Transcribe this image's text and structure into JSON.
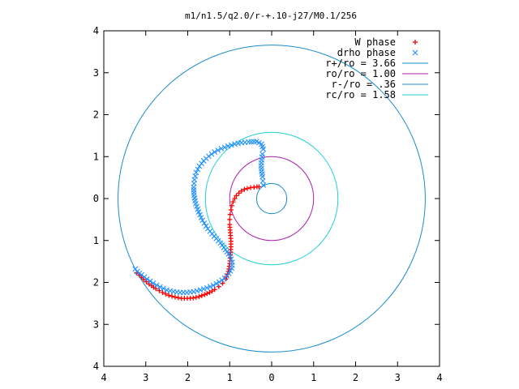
{
  "chart_data": {
    "type": "scatter",
    "title": "m1/n1.5/q2.0/r-+.10-j27/M0.1/256",
    "xlim": [
      -4,
      4
    ],
    "ylim": [
      -4,
      4
    ],
    "x_ticks": [
      "4",
      "3",
      "2",
      "1",
      "0",
      "1",
      "2",
      "3",
      "4"
    ],
    "y_ticks": [
      "4",
      "3",
      "2",
      "1",
      "0",
      "1",
      "2",
      "3",
      "4"
    ],
    "legend_position": "top-right",
    "colors": {
      "w_phase": "#ff0000",
      "drho_phase": "#1e90ff",
      "r_plus": "#1a8ccc",
      "r_o": "#b020b0",
      "r_minus": "#1a8ccc",
      "r_c": "#20d0d8"
    },
    "series": [
      {
        "key": "w_phase",
        "name": "W phase",
        "marker": "+",
        "points": [
          [
            -0.3,
            0.28
          ],
          [
            -0.35,
            0.28
          ],
          [
            -0.42,
            0.27
          ],
          [
            -0.5,
            0.26
          ],
          [
            -0.58,
            0.24
          ],
          [
            -0.65,
            0.22
          ],
          [
            -0.72,
            0.18
          ],
          [
            -0.78,
            0.13
          ],
          [
            -0.84,
            0.07
          ],
          [
            -0.88,
            0.0
          ],
          [
            -0.92,
            -0.08
          ],
          [
            -0.95,
            -0.17
          ],
          [
            -0.97,
            -0.27
          ],
          [
            -0.99,
            -0.38
          ],
          [
            -1.0,
            -0.5
          ],
          [
            -1.0,
            -0.62
          ],
          [
            -0.99,
            -0.75
          ],
          [
            -0.98,
            -0.88
          ],
          [
            -0.97,
            -1.02
          ],
          [
            -0.97,
            -1.15
          ],
          [
            -0.98,
            -1.28
          ],
          [
            -0.99,
            -1.42
          ],
          [
            -1.0,
            -1.55
          ],
          [
            -1.02,
            -1.68
          ],
          [
            -1.05,
            -1.8
          ],
          [
            -1.1,
            -1.92
          ],
          [
            -1.17,
            -2.02
          ],
          [
            -1.26,
            -2.1
          ],
          [
            -1.36,
            -2.17
          ],
          [
            -1.48,
            -2.24
          ],
          [
            -1.6,
            -2.29
          ],
          [
            -1.73,
            -2.34
          ],
          [
            -1.87,
            -2.37
          ],
          [
            -2.01,
            -2.38
          ],
          [
            -2.15,
            -2.38
          ],
          [
            -2.3,
            -2.35
          ],
          [
            -2.45,
            -2.31
          ],
          [
            -2.6,
            -2.24
          ],
          [
            -2.76,
            -2.15
          ],
          [
            -2.92,
            -2.04
          ],
          [
            -3.05,
            -1.93
          ],
          [
            -3.15,
            -1.83
          ],
          [
            -3.22,
            -1.77
          ]
        ]
      },
      {
        "key": "drho_phase",
        "name": "drho phase",
        "marker": "x",
        "points": [
          [
            -0.2,
            0.32
          ],
          [
            -0.21,
            0.42
          ],
          [
            -0.22,
            0.52
          ],
          [
            -0.24,
            0.65
          ],
          [
            -0.25,
            0.78
          ],
          [
            -0.24,
            0.92
          ],
          [
            -0.22,
            1.06
          ],
          [
            -0.2,
            1.18
          ],
          [
            -0.24,
            1.3
          ],
          [
            -0.36,
            1.36
          ],
          [
            -0.55,
            1.35
          ],
          [
            -0.72,
            1.33
          ],
          [
            -0.88,
            1.3
          ],
          [
            -1.04,
            1.25
          ],
          [
            -1.2,
            1.19
          ],
          [
            -1.36,
            1.11
          ],
          [
            -1.5,
            1.01
          ],
          [
            -1.62,
            0.9
          ],
          [
            -1.72,
            0.77
          ],
          [
            -1.8,
            0.62
          ],
          [
            -1.84,
            0.45
          ],
          [
            -1.86,
            0.27
          ],
          [
            -1.85,
            0.08
          ],
          [
            -1.81,
            -0.12
          ],
          [
            -1.74,
            -0.32
          ],
          [
            -1.65,
            -0.52
          ],
          [
            -1.52,
            -0.72
          ],
          [
            -1.37,
            -0.9
          ],
          [
            -1.22,
            -1.06
          ],
          [
            -1.1,
            -1.22
          ],
          [
            -0.99,
            -1.37
          ],
          [
            -0.94,
            -1.52
          ],
          [
            -0.95,
            -1.66
          ],
          [
            -1.02,
            -1.79
          ],
          [
            -1.12,
            -1.9
          ],
          [
            -1.25,
            -1.99
          ],
          [
            -1.39,
            -2.07
          ],
          [
            -1.54,
            -2.13
          ],
          [
            -1.7,
            -2.18
          ],
          [
            -1.86,
            -2.22
          ],
          [
            -2.02,
            -2.24
          ],
          [
            -2.18,
            -2.24
          ],
          [
            -2.34,
            -2.22
          ],
          [
            -2.5,
            -2.18
          ],
          [
            -2.66,
            -2.11
          ],
          [
            -2.82,
            -2.02
          ],
          [
            -2.97,
            -1.92
          ],
          [
            -3.1,
            -1.82
          ],
          [
            -3.2,
            -1.74
          ],
          [
            -3.25,
            -1.68
          ]
        ]
      },
      {
        "key": "r_plus",
        "name": "r+/ro = 3.66",
        "type": "circle",
        "radius": 3.66
      },
      {
        "key": "r_o",
        "name": "ro/ro = 1.00",
        "type": "circle",
        "radius": 1.0
      },
      {
        "key": "r_minus",
        "name": "r-/ro = .36",
        "type": "circle",
        "radius": 0.36
      },
      {
        "key": "r_c",
        "name": "rc/ro = 1.58",
        "type": "circle",
        "radius": 1.58
      }
    ]
  }
}
